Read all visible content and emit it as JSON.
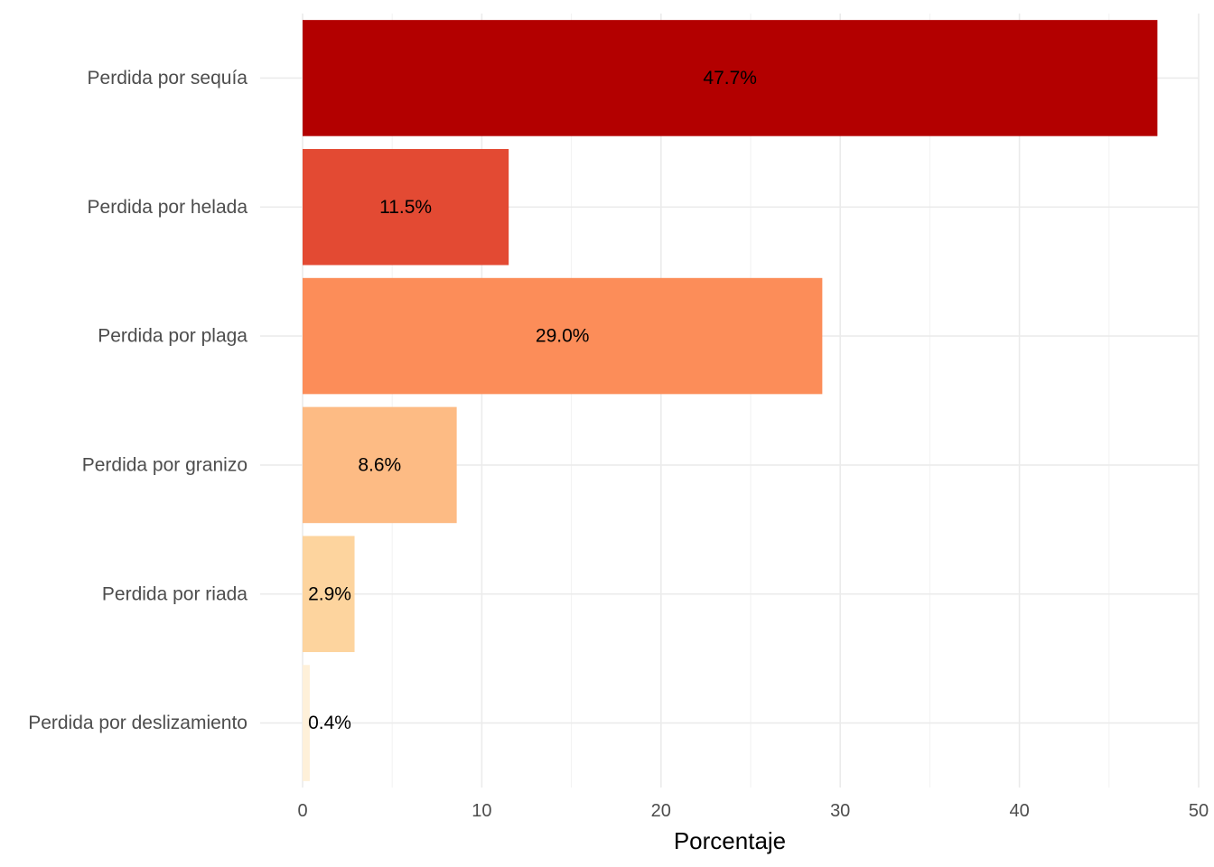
{
  "chart_data": {
    "type": "bar",
    "orientation": "horizontal",
    "categories": [
      "Perdida por sequía",
      "Perdida por helada",
      "Perdida por plaga",
      "Perdida por granizo",
      "Perdida por riada",
      "Perdida por deslizamiento"
    ],
    "values": [
      47.7,
      11.5,
      29.0,
      8.6,
      2.9,
      0.4
    ],
    "data_labels": [
      "47.7%",
      "11.5%",
      "29.0%",
      "8.6%",
      "2.9%",
      "0.4%"
    ],
    "colors": [
      "#b30000",
      "#e34a33",
      "#fc8d59",
      "#fdbb84",
      "#fdd49e",
      "#fef0d9"
    ],
    "title": "",
    "xlabel": "Porcentaje",
    "ylabel": "",
    "xlim": [
      0,
      50
    ],
    "xticks": [
      0,
      10,
      20,
      30,
      40,
      50
    ],
    "grid": true,
    "legend": "none"
  }
}
